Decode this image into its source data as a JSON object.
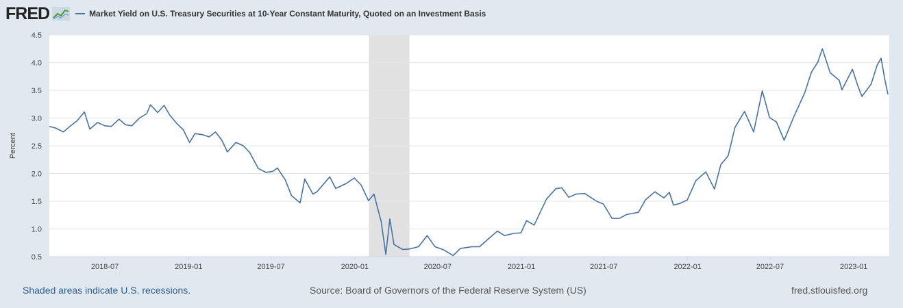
{
  "header": {
    "logo": "FRED",
    "legend_label": "Market Yield on U.S. Treasury Securities at 10-Year Constant Maturity, Quoted on an Investment Basis"
  },
  "footer": {
    "recession_note": "Shaded areas indicate U.S. recessions.",
    "source": "Source: Board of Governors of the Federal Reserve System (US)",
    "site": "fred.stlouisfed.org"
  },
  "colors": {
    "series": "#4572a7",
    "background": "#e1e9f0",
    "plot": "#ffffff",
    "recession": "#e1e1e1"
  },
  "chart_data": {
    "type": "line",
    "title": "",
    "xlabel": "",
    "ylabel": "Percent",
    "xlim": [
      "2018-03-01",
      "2023-03-20"
    ],
    "ylim": [
      0.5,
      4.5
    ],
    "yticks": [
      "0.5",
      "1.0",
      "1.5",
      "2.0",
      "2.5",
      "3.0",
      "3.5",
      "4.0",
      "4.5"
    ],
    "xticks": [
      "2018-07",
      "2019-01",
      "2019-07",
      "2020-01",
      "2020-07",
      "2021-01",
      "2021-07",
      "2022-01",
      "2022-07",
      "2023-01"
    ],
    "grid": "horizontal",
    "recession": {
      "start": "2020-02-01",
      "end": "2020-04-30"
    },
    "series": [
      {
        "name": "Market Yield on U.S. Treasury Securities at 10-Year Constant Maturity, Quoted on an Investment Basis",
        "points": [
          [
            "2018-03-01",
            2.85
          ],
          [
            "2018-03-15",
            2.82
          ],
          [
            "2018-04-01",
            2.75
          ],
          [
            "2018-04-15",
            2.85
          ],
          [
            "2018-05-01",
            2.95
          ],
          [
            "2018-05-17",
            3.11
          ],
          [
            "2018-05-29",
            2.8
          ],
          [
            "2018-06-15",
            2.92
          ],
          [
            "2018-07-01",
            2.86
          ],
          [
            "2018-07-15",
            2.85
          ],
          [
            "2018-08-01",
            2.98
          ],
          [
            "2018-08-15",
            2.88
          ],
          [
            "2018-08-29",
            2.86
          ],
          [
            "2018-09-15",
            3.0
          ],
          [
            "2018-10-01",
            3.08
          ],
          [
            "2018-10-09",
            3.24
          ],
          [
            "2018-10-25",
            3.1
          ],
          [
            "2018-11-08",
            3.23
          ],
          [
            "2018-11-20",
            3.06
          ],
          [
            "2018-12-05",
            2.91
          ],
          [
            "2018-12-20",
            2.79
          ],
          [
            "2019-01-03",
            2.56
          ],
          [
            "2019-01-15",
            2.72
          ],
          [
            "2019-02-01",
            2.7
          ],
          [
            "2019-02-15",
            2.66
          ],
          [
            "2019-03-01",
            2.75
          ],
          [
            "2019-03-15",
            2.6
          ],
          [
            "2019-03-27",
            2.39
          ],
          [
            "2019-04-15",
            2.56
          ],
          [
            "2019-05-01",
            2.5
          ],
          [
            "2019-05-15",
            2.38
          ],
          [
            "2019-06-03",
            2.09
          ],
          [
            "2019-06-20",
            2.02
          ],
          [
            "2019-07-05",
            2.04
          ],
          [
            "2019-07-15",
            2.1
          ],
          [
            "2019-08-01",
            1.89
          ],
          [
            "2019-08-15",
            1.6
          ],
          [
            "2019-09-03",
            1.47
          ],
          [
            "2019-09-13",
            1.9
          ],
          [
            "2019-10-01",
            1.63
          ],
          [
            "2019-10-10",
            1.67
          ],
          [
            "2019-11-07",
            1.94
          ],
          [
            "2019-11-20",
            1.73
          ],
          [
            "2019-12-13",
            1.82
          ],
          [
            "2019-12-31",
            1.92
          ],
          [
            "2020-01-15",
            1.79
          ],
          [
            "2020-01-31",
            1.51
          ],
          [
            "2020-02-12",
            1.63
          ],
          [
            "2020-02-28",
            1.13
          ],
          [
            "2020-03-09",
            0.54
          ],
          [
            "2020-03-18",
            1.18
          ],
          [
            "2020-03-27",
            0.72
          ],
          [
            "2020-04-15",
            0.63
          ],
          [
            "2020-05-01",
            0.64
          ],
          [
            "2020-05-20",
            0.68
          ],
          [
            "2020-06-08",
            0.88
          ],
          [
            "2020-06-25",
            0.68
          ],
          [
            "2020-07-15",
            0.62
          ],
          [
            "2020-08-04",
            0.52
          ],
          [
            "2020-08-20",
            0.65
          ],
          [
            "2020-09-15",
            0.68
          ],
          [
            "2020-10-01",
            0.68
          ],
          [
            "2020-10-23",
            0.84
          ],
          [
            "2020-11-09",
            0.96
          ],
          [
            "2020-11-25",
            0.88
          ],
          [
            "2020-12-15",
            0.92
          ],
          [
            "2020-12-31",
            0.93
          ],
          [
            "2021-01-12",
            1.15
          ],
          [
            "2021-01-29",
            1.07
          ],
          [
            "2021-02-25",
            1.54
          ],
          [
            "2021-03-18",
            1.73
          ],
          [
            "2021-03-31",
            1.74
          ],
          [
            "2021-04-15",
            1.57
          ],
          [
            "2021-05-01",
            1.63
          ],
          [
            "2021-05-20",
            1.64
          ],
          [
            "2021-06-15",
            1.5
          ],
          [
            "2021-06-30",
            1.45
          ],
          [
            "2021-07-19",
            1.19
          ],
          [
            "2021-08-04",
            1.19
          ],
          [
            "2021-08-20",
            1.26
          ],
          [
            "2021-09-15",
            1.3
          ],
          [
            "2021-09-30",
            1.52
          ],
          [
            "2021-10-21",
            1.67
          ],
          [
            "2021-11-10",
            1.56
          ],
          [
            "2021-11-22",
            1.66
          ],
          [
            "2021-12-01",
            1.43
          ],
          [
            "2021-12-15",
            1.46
          ],
          [
            "2021-12-31",
            1.52
          ],
          [
            "2022-01-19",
            1.87
          ],
          [
            "2022-02-10",
            2.03
          ],
          [
            "2022-03-01",
            1.72
          ],
          [
            "2022-03-15",
            2.16
          ],
          [
            "2022-03-31",
            2.32
          ],
          [
            "2022-04-15",
            2.83
          ],
          [
            "2022-05-06",
            3.12
          ],
          [
            "2022-05-26",
            2.75
          ],
          [
            "2022-06-14",
            3.49
          ],
          [
            "2022-06-30",
            3.01
          ],
          [
            "2022-07-15",
            2.93
          ],
          [
            "2022-08-01",
            2.6
          ],
          [
            "2022-08-22",
            3.02
          ],
          [
            "2022-09-15",
            3.45
          ],
          [
            "2022-09-30",
            3.83
          ],
          [
            "2022-10-14",
            4.01
          ],
          [
            "2022-10-24",
            4.25
          ],
          [
            "2022-11-10",
            3.82
          ],
          [
            "2022-11-30",
            3.68
          ],
          [
            "2022-12-06",
            3.51
          ],
          [
            "2022-12-29",
            3.88
          ],
          [
            "2023-01-10",
            3.58
          ],
          [
            "2023-01-19",
            3.39
          ],
          [
            "2023-02-08",
            3.61
          ],
          [
            "2023-02-21",
            3.95
          ],
          [
            "2023-03-02",
            4.08
          ],
          [
            "2023-03-10",
            3.7
          ],
          [
            "2023-03-17",
            3.43
          ]
        ]
      }
    ]
  }
}
